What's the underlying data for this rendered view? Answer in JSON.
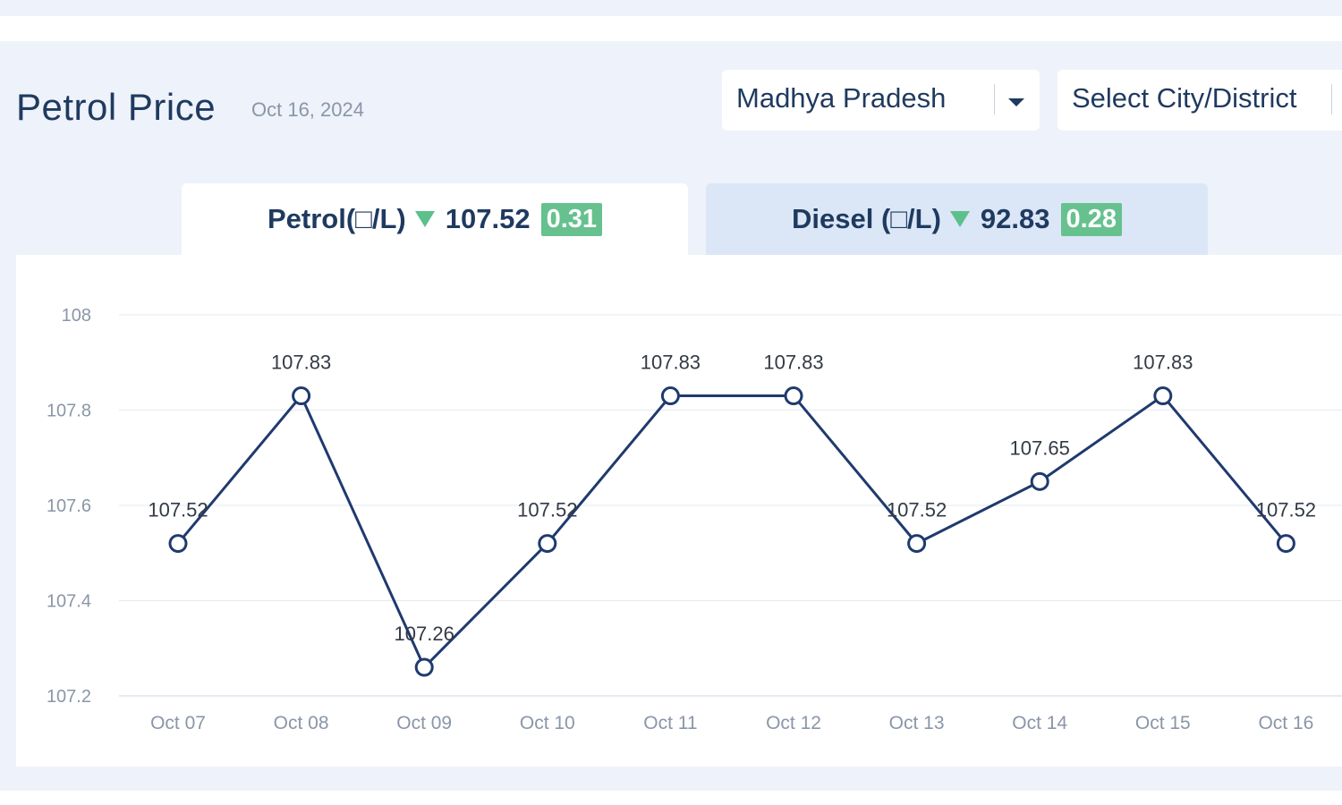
{
  "header": {
    "title": "Petrol Price",
    "date": "Oct 16, 2024"
  },
  "filters": {
    "state": "Madhya Pradesh",
    "city": "Select City/District"
  },
  "tabs": [
    {
      "label": "Petrol(□/L)",
      "price": "107.52",
      "change": "0.31",
      "trend_icon": "triangle-down-icon",
      "active": true
    },
    {
      "label": "Diesel (□/L)",
      "price": "92.83",
      "change": "0.28",
      "trend_icon": "triangle-down-icon",
      "active": false
    }
  ],
  "colors": {
    "line": "#1f3a6e",
    "badge": "#66c18f",
    "trend_down": "#5cc08a",
    "title": "#1f3a5f",
    "active_tab": "#ffffff",
    "inactive_tab": "#dbe6f7"
  },
  "chart_data": {
    "type": "line",
    "title": "",
    "xlabel": "",
    "ylabel": "",
    "categories": [
      "Oct 07",
      "Oct 08",
      "Oct 09",
      "Oct 10",
      "Oct 11",
      "Oct 12",
      "Oct 13",
      "Oct 14",
      "Oct 15",
      "Oct 16"
    ],
    "series": [
      {
        "values": [
          107.52,
          107.83,
          107.26,
          107.52,
          107.83,
          107.83,
          107.52,
          107.65,
          107.83,
          107.52
        ]
      }
    ],
    "data_labels": [
      "107.52",
      "107.83",
      "107.26",
      "107.52",
      "107.83",
      "107.83",
      "107.52",
      "107.65",
      "107.83",
      "107.52"
    ],
    "ylim": [
      107.2,
      108
    ],
    "yticks": [
      "108",
      "107.8",
      "107.6",
      "107.4",
      "107.2"
    ],
    "grid": true,
    "legend": "none"
  }
}
